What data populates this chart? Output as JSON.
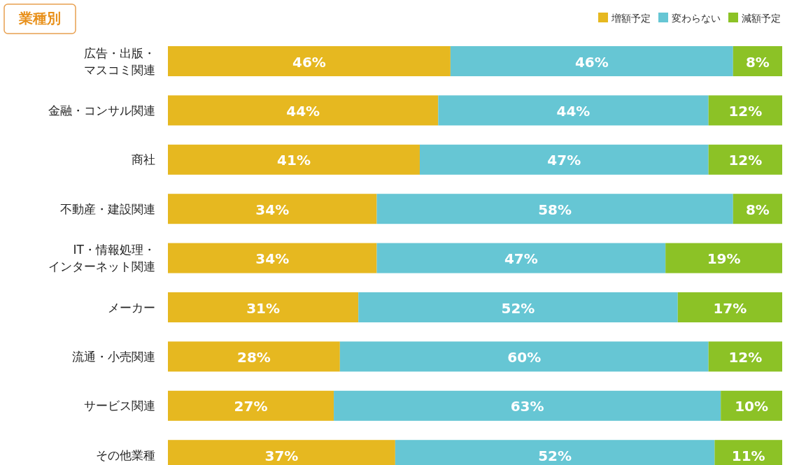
{
  "chart_data": {
    "type": "bar",
    "orientation": "horizontal",
    "stacked": true,
    "title": "業種別",
    "legend": "top right",
    "categories": [
      "広告・出版・マスコミ関連",
      "金融・コンサル関連",
      "商社",
      "不動産・建設関連",
      "IT・情報処理・インターネット関連",
      "メーカー",
      "流通・小売関連",
      "サービス関連",
      "その他業種"
    ],
    "series": [
      {
        "name": "増額予定",
        "color": "#e6b820",
        "values": [
          46,
          44,
          41,
          34,
          34,
          31,
          28,
          27,
          37
        ],
        "value_labels": [
          "46%",
          "44%",
          "41%",
          "34%",
          "34%",
          "31%",
          "28%",
          "27%",
          "37%"
        ]
      },
      {
        "name": "変わらない",
        "color": "#66c6d4",
        "values": [
          46,
          44,
          47,
          58,
          47,
          52,
          60,
          63,
          52
        ],
        "value_labels": [
          "46%",
          "44%",
          "47%",
          "58%",
          "47%",
          "52%",
          "60%",
          "63%",
          "52%"
        ]
      },
      {
        "name": "減額予定",
        "color": "#8cc226",
        "values": [
          8,
          12,
          12,
          8,
          19,
          17,
          12,
          10,
          11
        ],
        "value_labels": [
          "8%",
          "12%",
          "12%",
          "8%",
          "19%",
          "17%",
          "12%",
          "10%",
          "11%"
        ]
      }
    ]
  }
}
